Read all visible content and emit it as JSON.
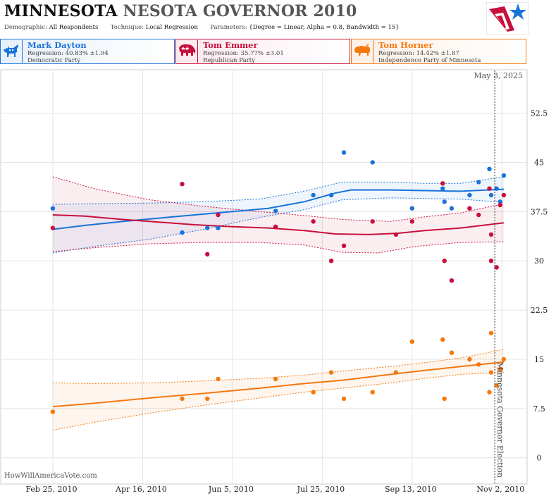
{
  "header": {
    "title_part1": "MINNESOTA",
    "title_part2": "NESOTA GOVERNOR 2010",
    "demographic_label": "Demographic:",
    "demographic_value": "All Respondents",
    "technique_label": "Technique:",
    "technique_value": "Local Regression",
    "parameters_label": "Parameters:",
    "parameters_value": "{Degree = Linear, Alpha = 0.8, Bandwidth = 15}",
    "logo_icon": "stars-and-stripes-logo-icon"
  },
  "candidates": [
    {
      "name": "Mark Dayton",
      "regression": "Regression: 40.83% ±1.94",
      "party": "Democratic Party",
      "icon": "donkey-icon",
      "color": "#1a73d9",
      "bg": "#e8f0fb"
    },
    {
      "name": "Tom Emmer",
      "regression": "Regression: 35.77% ±3.01",
      "party": "Republican Party",
      "icon": "elephant-icon",
      "color": "#c8103c",
      "bg": "#fbe9ee"
    },
    {
      "name": "Tom Horner",
      "regression": "Regression: 14.42% ±1.87",
      "party": "Independence Party  of Minnesota",
      "icon": "bison-icon",
      "color": "#f5780f",
      "bg": "#fdf0e6"
    }
  ],
  "watermark": "HowWillAmericaVote.com",
  "chart_data": {
    "type": "scatter",
    "x_dates": [
      "2010-02-25",
      "2010-04-16",
      "2010-06-05",
      "2010-07-25",
      "2010-09-13",
      "2010-11-02"
    ],
    "x_tick_labels": [
      "Feb 25, 2010",
      "Apr 16, 2010",
      "Jun 5, 2010",
      "Jul 25, 2010",
      "Sep 13, 2010",
      "Nov 2, 2010"
    ],
    "x_range": [
      "2010-01-27",
      "2010-11-16"
    ],
    "y_ticks": [
      0,
      7.5,
      15,
      22.5,
      30,
      37.5,
      45,
      52.5
    ],
    "y_tick_labels": [
      "0",
      "7.5",
      "15",
      "22.5",
      "30",
      "37.5",
      "45",
      "52.5"
    ],
    "ylim": [
      -4,
      59
    ],
    "grid": true,
    "today_label": "May 3, 2025",
    "election_date": "2010-10-29",
    "election_label": "Minnesota Governor Election",
    "series": [
      {
        "name": "Mark Dayton",
        "color": "#1a73d9",
        "points": [
          [
            "2010-02-25",
            38
          ],
          [
            "2010-05-08",
            34.3
          ],
          [
            "2010-05-22",
            35
          ],
          [
            "2010-05-28",
            35
          ],
          [
            "2010-06-29",
            37.6
          ],
          [
            "2010-07-20",
            40
          ],
          [
            "2010-07-30",
            40
          ],
          [
            "2010-08-06",
            46.5
          ],
          [
            "2010-08-22",
            45
          ],
          [
            "2010-09-13",
            38
          ],
          [
            "2010-09-30",
            41
          ],
          [
            "2010-10-01",
            39
          ],
          [
            "2010-10-05",
            38
          ],
          [
            "2010-10-15",
            40
          ],
          [
            "2010-10-20",
            42
          ],
          [
            "2010-10-26",
            44
          ],
          [
            "2010-10-27",
            40
          ],
          [
            "2010-10-30",
            41
          ],
          [
            "2010-11-01",
            39
          ],
          [
            "2010-11-03",
            43
          ]
        ],
        "trend": [
          [
            "2010-02-25",
            34.8
          ],
          [
            "2010-03-15",
            35.4
          ],
          [
            "2010-04-05",
            36.0
          ],
          [
            "2010-04-25",
            36.5
          ],
          [
            "2010-05-15",
            37.0
          ],
          [
            "2010-06-05",
            37.5
          ],
          [
            "2010-06-25",
            38.0
          ],
          [
            "2010-07-15",
            39.0
          ],
          [
            "2010-08-01",
            40.3
          ],
          [
            "2010-08-10",
            40.8
          ],
          [
            "2010-09-01",
            40.8
          ],
          [
            "2010-09-20",
            40.7
          ],
          [
            "2010-10-10",
            40.6
          ],
          [
            "2010-11-03",
            40.9
          ]
        ],
        "upper": [
          [
            "2010-02-25",
            38.6
          ],
          [
            "2010-03-20",
            38.7
          ],
          [
            "2010-04-20",
            38.8
          ],
          [
            "2010-05-20",
            39.0
          ],
          [
            "2010-06-20",
            39.4
          ],
          [
            "2010-07-15",
            40.6
          ],
          [
            "2010-08-05",
            42.0
          ],
          [
            "2010-09-01",
            42.0
          ],
          [
            "2010-09-20",
            41.8
          ],
          [
            "2010-10-10",
            41.8
          ],
          [
            "2010-11-03",
            42.8
          ]
        ],
        "lower": [
          [
            "2010-02-25",
            31.2
          ],
          [
            "2010-03-20",
            32.2
          ],
          [
            "2010-04-20",
            33.3
          ],
          [
            "2010-05-20",
            34.8
          ],
          [
            "2010-06-20",
            36.6
          ],
          [
            "2010-07-15",
            37.8
          ],
          [
            "2010-08-05",
            39.3
          ],
          [
            "2010-09-01",
            39.6
          ],
          [
            "2010-09-20",
            39.5
          ],
          [
            "2010-10-10",
            39.4
          ],
          [
            "2010-11-03",
            38.9
          ]
        ]
      },
      {
        "name": "Tom Emmer",
        "color": "#c8103c",
        "points": [
          [
            "2010-02-25",
            35
          ],
          [
            "2010-05-08",
            41.7
          ],
          [
            "2010-05-22",
            31
          ],
          [
            "2010-05-28",
            37
          ],
          [
            "2010-06-29",
            35.2
          ],
          [
            "2010-07-20",
            36
          ],
          [
            "2010-07-30",
            30
          ],
          [
            "2010-08-06",
            32.3
          ],
          [
            "2010-08-22",
            36
          ],
          [
            "2010-09-04",
            34
          ],
          [
            "2010-09-13",
            36
          ],
          [
            "2010-09-30",
            41.8
          ],
          [
            "2010-10-01",
            30
          ],
          [
            "2010-10-05",
            27
          ],
          [
            "2010-10-15",
            38
          ],
          [
            "2010-10-20",
            37
          ],
          [
            "2010-10-26",
            41
          ],
          [
            "2010-10-27",
            34
          ],
          [
            "2010-10-27",
            30
          ],
          [
            "2010-10-30",
            29
          ],
          [
            "2010-11-01",
            38.5
          ],
          [
            "2010-11-03",
            40
          ]
        ],
        "trend": [
          [
            "2010-02-25",
            37.0
          ],
          [
            "2010-03-15",
            36.8
          ],
          [
            "2010-04-05",
            36.3
          ],
          [
            "2010-04-25",
            35.9
          ],
          [
            "2010-05-15",
            35.5
          ],
          [
            "2010-06-05",
            35.2
          ],
          [
            "2010-06-25",
            35.0
          ],
          [
            "2010-07-15",
            34.6
          ],
          [
            "2010-08-01",
            34.1
          ],
          [
            "2010-08-20",
            34.0
          ],
          [
            "2010-09-05",
            34.2
          ],
          [
            "2010-09-20",
            34.6
          ],
          [
            "2010-10-10",
            35.0
          ],
          [
            "2010-11-03",
            35.8
          ]
        ],
        "upper": [
          [
            "2010-02-25",
            42.8
          ],
          [
            "2010-03-20",
            41.0
          ],
          [
            "2010-04-20",
            39.3
          ],
          [
            "2010-05-20",
            38.3
          ],
          [
            "2010-06-20",
            37.5
          ],
          [
            "2010-07-15",
            36.9
          ],
          [
            "2010-08-05",
            36.3
          ],
          [
            "2010-09-01",
            36.0
          ],
          [
            "2010-09-20",
            36.7
          ],
          [
            "2010-10-10",
            37.3
          ],
          [
            "2010-11-03",
            38.7
          ]
        ],
        "lower": [
          [
            "2010-02-25",
            31.4
          ],
          [
            "2010-03-20",
            32.0
          ],
          [
            "2010-04-20",
            32.6
          ],
          [
            "2010-05-20",
            32.8
          ],
          [
            "2010-06-20",
            32.8
          ],
          [
            "2010-07-15",
            32.4
          ],
          [
            "2010-08-05",
            31.3
          ],
          [
            "2010-08-25",
            31.2
          ],
          [
            "2010-09-15",
            32.2
          ],
          [
            "2010-10-10",
            32.8
          ],
          [
            "2010-11-03",
            32.9
          ]
        ]
      },
      {
        "name": "Tom Horner",
        "color": "#f5780f",
        "points": [
          [
            "2010-02-25",
            7
          ],
          [
            "2010-05-08",
            9
          ],
          [
            "2010-05-22",
            9
          ],
          [
            "2010-05-28",
            12
          ],
          [
            "2010-06-29",
            12
          ],
          [
            "2010-07-20",
            10
          ],
          [
            "2010-07-30",
            13
          ],
          [
            "2010-08-06",
            9
          ],
          [
            "2010-08-22",
            10
          ],
          [
            "2010-09-04",
            13
          ],
          [
            "2010-09-13",
            17.7
          ],
          [
            "2010-09-30",
            18
          ],
          [
            "2010-10-01",
            9
          ],
          [
            "2010-10-05",
            16
          ],
          [
            "2010-10-15",
            15
          ],
          [
            "2010-10-20",
            14.2
          ],
          [
            "2010-10-26",
            10
          ],
          [
            "2010-10-27",
            19
          ],
          [
            "2010-10-27",
            13
          ],
          [
            "2010-10-30",
            11
          ],
          [
            "2010-11-01",
            13.5
          ],
          [
            "2010-11-03",
            15
          ]
        ],
        "trend": [
          [
            "2010-02-25",
            7.8
          ],
          [
            "2010-03-20",
            8.3
          ],
          [
            "2010-04-20",
            9.1
          ],
          [
            "2010-05-20",
            9.8
          ],
          [
            "2010-06-20",
            10.6
          ],
          [
            "2010-07-15",
            11.3
          ],
          [
            "2010-08-05",
            11.8
          ],
          [
            "2010-09-01",
            12.7
          ],
          [
            "2010-09-20",
            13.3
          ],
          [
            "2010-10-10",
            13.9
          ],
          [
            "2010-11-03",
            14.6
          ]
        ],
        "upper": [
          [
            "2010-02-25",
            11.4
          ],
          [
            "2010-03-20",
            11.3
          ],
          [
            "2010-04-20",
            11.4
          ],
          [
            "2010-05-20",
            11.7
          ],
          [
            "2010-06-20",
            12.1
          ],
          [
            "2010-07-15",
            12.6
          ],
          [
            "2010-08-05",
            13.2
          ],
          [
            "2010-09-01",
            13.9
          ],
          [
            "2010-09-20",
            14.5
          ],
          [
            "2010-10-10",
            15.2
          ],
          [
            "2010-11-03",
            16.5
          ]
        ],
        "lower": [
          [
            "2010-02-25",
            4.2
          ],
          [
            "2010-03-20",
            5.4
          ],
          [
            "2010-04-20",
            6.8
          ],
          [
            "2010-05-20",
            8.0
          ],
          [
            "2010-06-20",
            9.1
          ],
          [
            "2010-07-15",
            10.0
          ],
          [
            "2010-08-05",
            10.6
          ],
          [
            "2010-09-01",
            11.4
          ],
          [
            "2010-09-20",
            12.1
          ],
          [
            "2010-10-10",
            12.7
          ],
          [
            "2010-11-03",
            13.0
          ]
        ]
      }
    ]
  }
}
